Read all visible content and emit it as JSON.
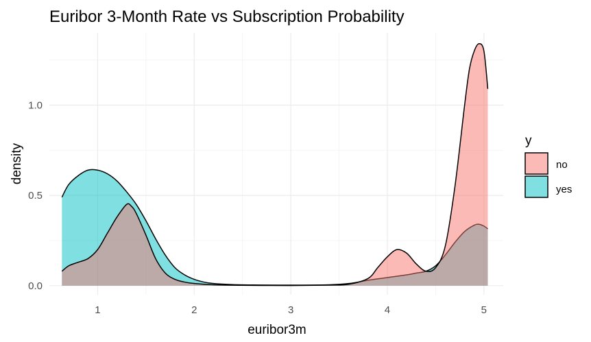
{
  "chart_data": {
    "type": "area",
    "title": "Euribor 3-Month Rate vs Subscription Probability",
    "xlabel": "euribor3m",
    "ylabel": "density",
    "xlim": [
      0.5,
      5.2
    ],
    "ylim": [
      -0.05,
      1.4
    ],
    "x_ticks": [
      1,
      2,
      3,
      4,
      5
    ],
    "x_tick_labels": [
      "1",
      "2",
      "3",
      "4",
      "5"
    ],
    "y_ticks": [
      0.0,
      0.5,
      1.0
    ],
    "y_tick_labels": [
      "0.0",
      "0.5",
      "1.0"
    ],
    "grid": true,
    "legend": {
      "title": "y",
      "position": "right"
    },
    "series": [
      {
        "name": "yes",
        "color": "#00BFC4",
        "points": [
          [
            0.63,
            0.49
          ],
          [
            0.7,
            0.56
          ],
          [
            0.8,
            0.61
          ],
          [
            0.9,
            0.64
          ],
          [
            1.0,
            0.64
          ],
          [
            1.1,
            0.62
          ],
          [
            1.2,
            0.58
          ],
          [
            1.3,
            0.52
          ],
          [
            1.4,
            0.45
          ],
          [
            1.5,
            0.36
          ],
          [
            1.6,
            0.26
          ],
          [
            1.7,
            0.17
          ],
          [
            1.8,
            0.1
          ],
          [
            1.9,
            0.06
          ],
          [
            2.0,
            0.035
          ],
          [
            2.1,
            0.02
          ],
          [
            2.2,
            0.012
          ],
          [
            2.4,
            0.006
          ],
          [
            2.6,
            0.004
          ],
          [
            3.0,
            0.003
          ],
          [
            3.4,
            0.005
          ],
          [
            3.6,
            0.012
          ],
          [
            3.8,
            0.03
          ],
          [
            4.0,
            0.045
          ],
          [
            4.2,
            0.06
          ],
          [
            4.3,
            0.07
          ],
          [
            4.4,
            0.08
          ],
          [
            4.5,
            0.11
          ],
          [
            4.6,
            0.17
          ],
          [
            4.7,
            0.24
          ],
          [
            4.8,
            0.3
          ],
          [
            4.9,
            0.335
          ],
          [
            4.95,
            0.34
          ],
          [
            5.0,
            0.33
          ],
          [
            5.04,
            0.315
          ]
        ]
      },
      {
        "name": "no",
        "color": "#F8766D",
        "points": [
          [
            0.63,
            0.08
          ],
          [
            0.7,
            0.11
          ],
          [
            0.8,
            0.13
          ],
          [
            0.9,
            0.15
          ],
          [
            1.0,
            0.2
          ],
          [
            1.1,
            0.29
          ],
          [
            1.2,
            0.38
          ],
          [
            1.3,
            0.45
          ],
          [
            1.35,
            0.44
          ],
          [
            1.4,
            0.4
          ],
          [
            1.5,
            0.28
          ],
          [
            1.6,
            0.15
          ],
          [
            1.7,
            0.07
          ],
          [
            1.8,
            0.035
          ],
          [
            1.9,
            0.02
          ],
          [
            2.0,
            0.012
          ],
          [
            2.2,
            0.005
          ],
          [
            2.5,
            0.002
          ],
          [
            3.0,
            0.001
          ],
          [
            3.4,
            0.003
          ],
          [
            3.6,
            0.008
          ],
          [
            3.8,
            0.04
          ],
          [
            3.9,
            0.1
          ],
          [
            4.0,
            0.16
          ],
          [
            4.1,
            0.2
          ],
          [
            4.2,
            0.18
          ],
          [
            4.3,
            0.12
          ],
          [
            4.4,
            0.08
          ],
          [
            4.5,
            0.1
          ],
          [
            4.6,
            0.22
          ],
          [
            4.7,
            0.55
          ],
          [
            4.8,
            1.0
          ],
          [
            4.85,
            1.2
          ],
          [
            4.9,
            1.3
          ],
          [
            4.95,
            1.34
          ],
          [
            5.0,
            1.3
          ],
          [
            5.04,
            1.09
          ]
        ]
      }
    ]
  }
}
